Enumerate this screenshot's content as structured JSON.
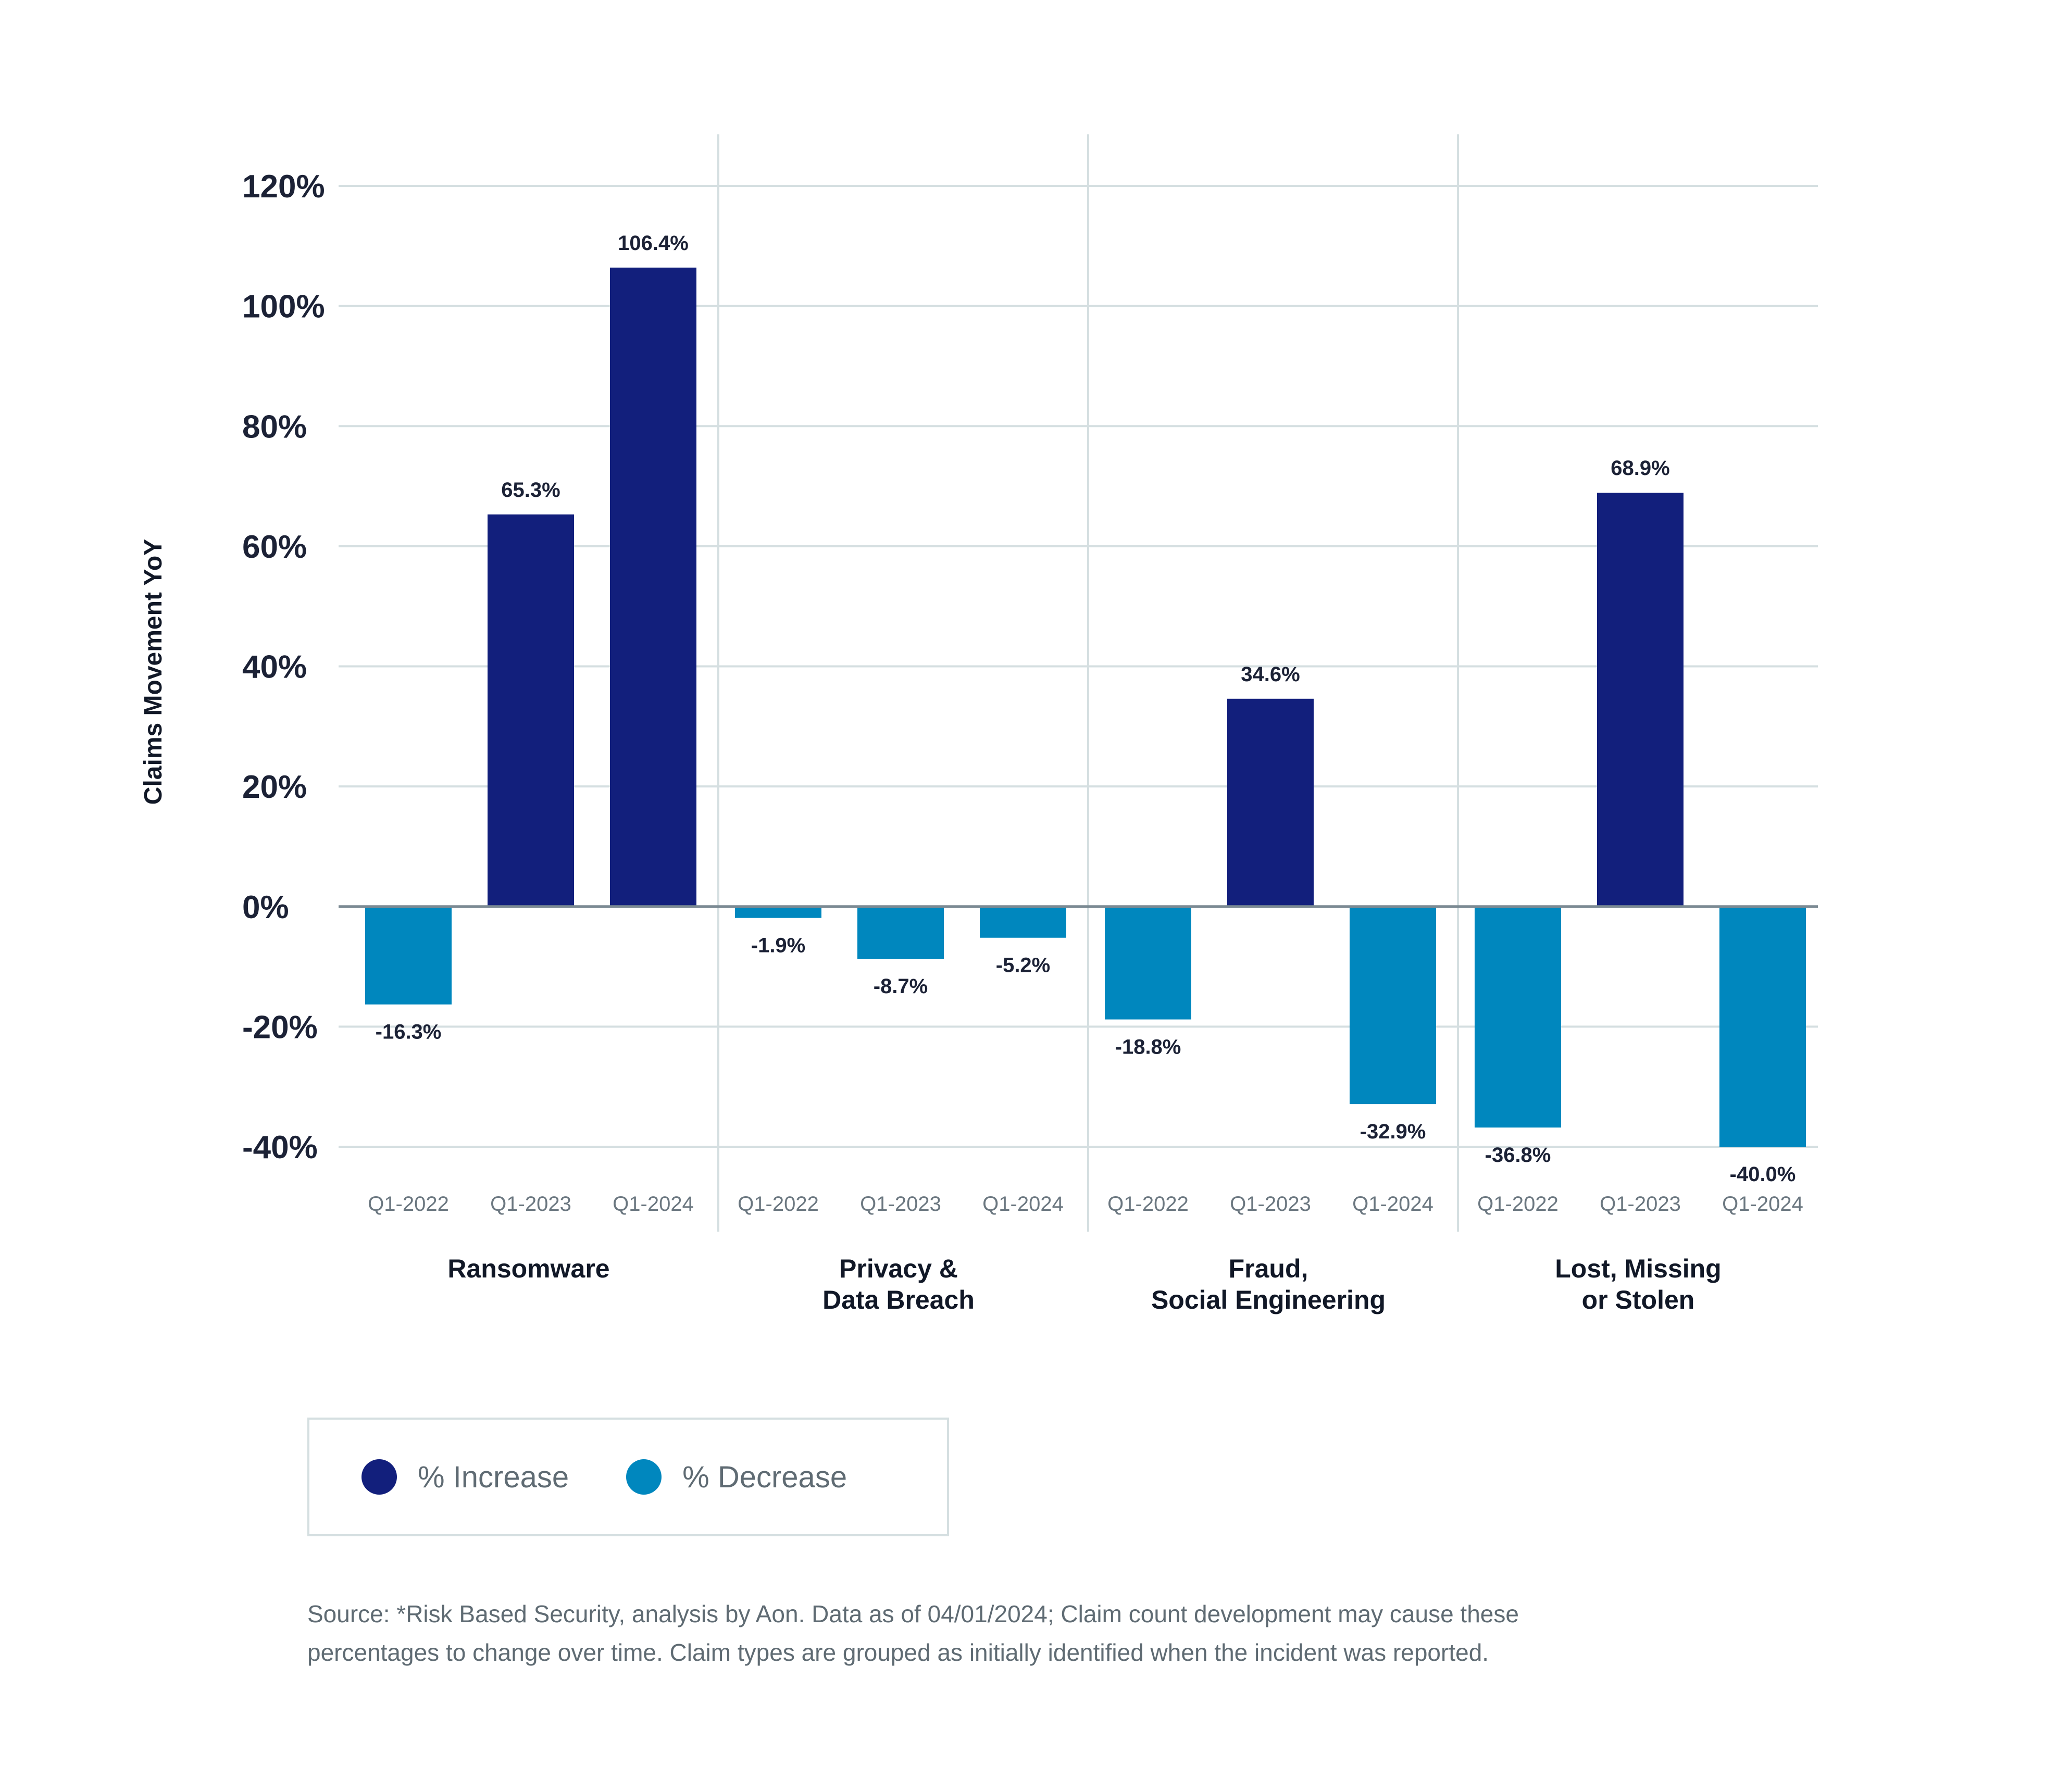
{
  "chart_data": {
    "type": "bar",
    "ylabel": "Claims Movement YoY",
    "ylim": [
      -40,
      120
    ],
    "yticks": [
      120,
      100,
      80,
      60,
      40,
      20,
      0,
      -20,
      -40
    ],
    "ytick_labels": [
      "120%",
      "100%",
      "80%",
      "60%",
      "40%",
      "20%",
      "0%",
      "-20%",
      "-40%"
    ],
    "grid": true,
    "groups": [
      {
        "name": "Ransomware",
        "label_lines": [
          "Ransomware"
        ],
        "categories": [
          "Q1-2022",
          "Q1-2023",
          "Q1-2024"
        ],
        "values": [
          -16.3,
          65.3,
          106.4
        ],
        "value_labels": [
          "-16.3%",
          "65.3%",
          "106.4%"
        ]
      },
      {
        "name": "Privacy & Data Breach",
        "label_lines": [
          "Privacy &",
          "Data Breach"
        ],
        "categories": [
          "Q1-2022",
          "Q1-2023",
          "Q1-2024"
        ],
        "values": [
          -1.9,
          -8.7,
          -5.2
        ],
        "value_labels": [
          "-1.9%",
          "-8.7%",
          "-5.2%"
        ]
      },
      {
        "name": "Fraud, Social Engineering",
        "label_lines": [
          "Fraud,",
          "Social Engineering"
        ],
        "categories": [
          "Q1-2022",
          "Q1-2023",
          "Q1-2024"
        ],
        "values": [
          -18.8,
          34.6,
          -32.9
        ],
        "value_labels": [
          "-18.8%",
          "34.6%",
          "-32.9%"
        ]
      },
      {
        "name": "Lost, Missing or Stolen",
        "label_lines": [
          "Lost, Missing",
          "or Stolen"
        ],
        "categories": [
          "Q1-2022",
          "Q1-2023",
          "Q1-2024"
        ],
        "values": [
          -36.8,
          68.9,
          -40.0
        ],
        "value_labels": [
          "-36.8%",
          "68.9%",
          "-40.0%"
        ]
      }
    ],
    "colors": {
      "increase": "#121f7c",
      "decrease": "#0087be",
      "grid": "#d5dfe1",
      "zero_line": "#7b8a93"
    }
  },
  "legend": {
    "items": [
      {
        "label": "% Increase",
        "color": "#121f7c"
      },
      {
        "label": "% Decrease",
        "color": "#0087be"
      }
    ]
  },
  "source": {
    "line1": "Source: *Risk Based Security, analysis by Aon. Data as of 04/01/2024; Claim count development may cause these",
    "line2": "percentages to change over time. Claim types are grouped as initially identified when the incident was reported."
  }
}
